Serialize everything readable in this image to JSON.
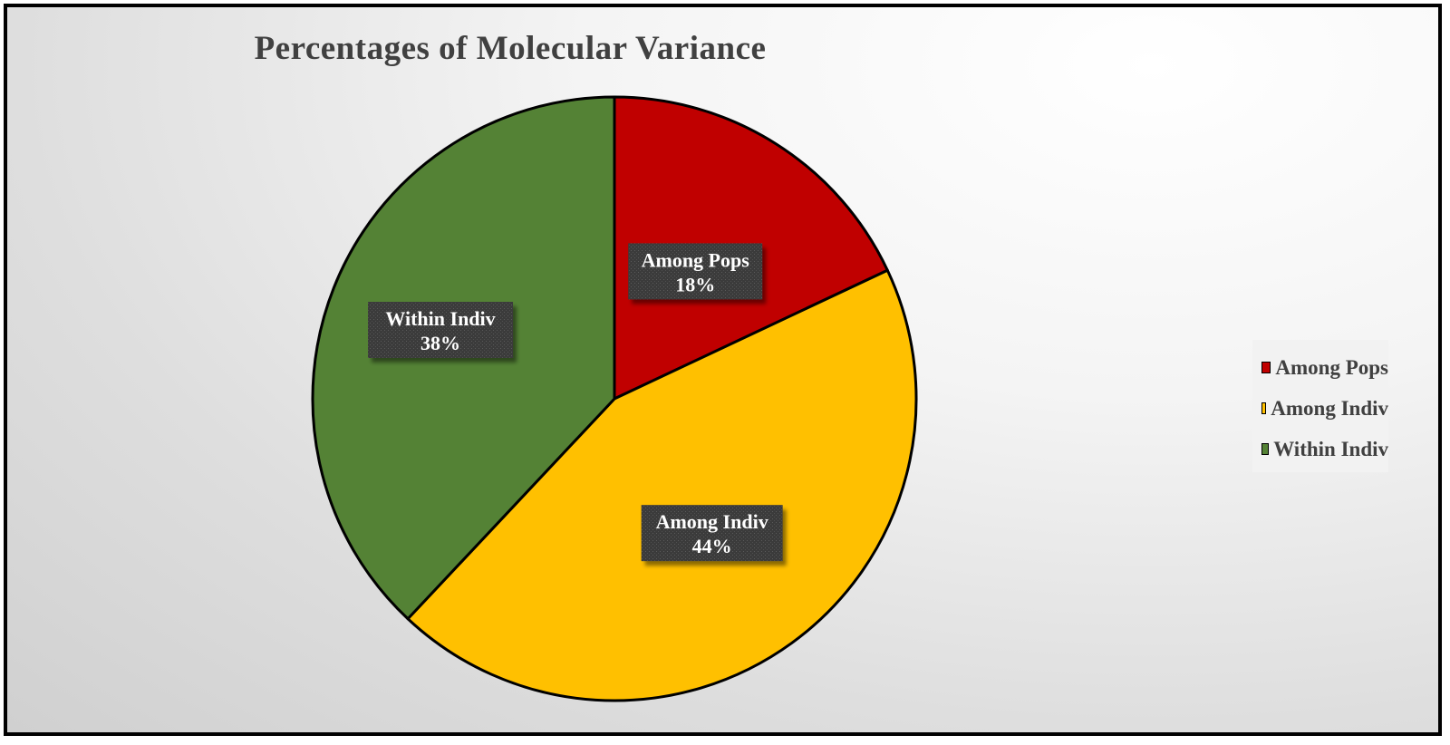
{
  "chart_data": {
    "type": "pie",
    "title": "Percentages of Molecular Variance",
    "categories": [
      "Among Pops",
      "Among Indiv",
      "Within Indiv"
    ],
    "values": [
      18,
      44,
      38
    ],
    "value_format": "percent",
    "colors": [
      "#c00000",
      "#ffc000",
      "#548235"
    ],
    "slice_labels": [
      {
        "name": "Among Pops",
        "value_text": "18%"
      },
      {
        "name": "Among Indiv",
        "value_text": "44%"
      },
      {
        "name": "Within Indiv",
        "value_text": "38%"
      }
    ],
    "legend": {
      "position": "right",
      "entries": [
        "Among Pops",
        "Among Indiv",
        "Within Indiv"
      ]
    },
    "start_angle": "12 o'clock",
    "direction": "clockwise"
  }
}
